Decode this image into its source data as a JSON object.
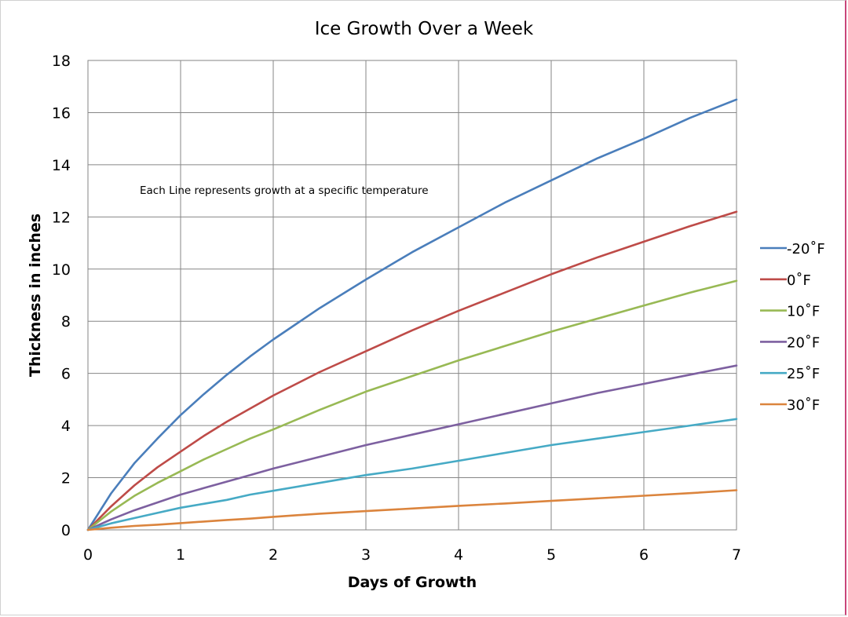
{
  "chart_data": {
    "type": "line",
    "title": "Ice Growth Over a Week",
    "xlabel": "Days of Growth",
    "ylabel": "Thickness in inches",
    "annotation": "Each Line represents growth at a specific temperature",
    "xlim": [
      0,
      7
    ],
    "ylim": [
      0,
      18
    ],
    "x_ticks": [
      0,
      1,
      2,
      3,
      4,
      5,
      6,
      7
    ],
    "y_ticks": [
      0,
      2,
      4,
      6,
      8,
      10,
      12,
      14,
      16,
      18
    ],
    "grid": true,
    "legend_position": "right",
    "x": [
      0,
      0.25,
      0.5,
      0.75,
      1,
      1.25,
      1.5,
      1.75,
      2,
      2.5,
      3,
      3.5,
      4,
      4.5,
      5,
      5.5,
      6,
      6.5,
      7
    ],
    "series": [
      {
        "name": "-20˚F",
        "color": "#4a7ebb",
        "values": [
          0,
          1.4,
          2.55,
          3.5,
          4.4,
          5.2,
          5.95,
          6.65,
          7.3,
          8.5,
          9.6,
          10.65,
          11.6,
          12.55,
          13.4,
          14.25,
          15.0,
          15.8,
          16.5
        ]
      },
      {
        "name": "0˚F",
        "color": "#be4b48",
        "values": [
          0,
          0.9,
          1.7,
          2.4,
          3.0,
          3.6,
          4.15,
          4.65,
          5.15,
          6.05,
          6.85,
          7.65,
          8.4,
          9.1,
          9.8,
          10.45,
          11.05,
          11.65,
          12.2
        ]
      },
      {
        "name": "10˚F",
        "color": "#98b954",
        "values": [
          0,
          0.7,
          1.3,
          1.8,
          2.25,
          2.7,
          3.1,
          3.5,
          3.85,
          4.6,
          5.3,
          5.9,
          6.5,
          7.05,
          7.6,
          8.1,
          8.6,
          9.1,
          9.55
        ]
      },
      {
        "name": "20˚F",
        "color": "#7d60a0",
        "values": [
          0,
          0.4,
          0.75,
          1.05,
          1.35,
          1.6,
          1.85,
          2.1,
          2.35,
          2.8,
          3.25,
          3.65,
          4.05,
          4.45,
          4.85,
          5.25,
          5.6,
          5.95,
          6.3
        ]
      },
      {
        "name": "25˚F",
        "color": "#46aac5",
        "values": [
          0,
          0.25,
          0.45,
          0.65,
          0.85,
          1.0,
          1.15,
          1.35,
          1.5,
          1.8,
          2.1,
          2.35,
          2.65,
          2.95,
          3.25,
          3.5,
          3.75,
          4.0,
          4.25
        ]
      },
      {
        "name": "30˚F",
        "color": "#db843d",
        "values": [
          0,
          0.08,
          0.15,
          0.2,
          0.26,
          0.32,
          0.38,
          0.43,
          0.5,
          0.62,
          0.72,
          0.82,
          0.92,
          1.01,
          1.11,
          1.21,
          1.31,
          1.41,
          1.52
        ]
      }
    ]
  }
}
